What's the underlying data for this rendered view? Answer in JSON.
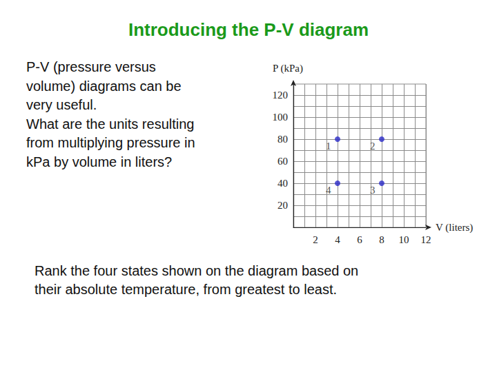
{
  "slide": {
    "title": "Introducing the P-V diagram",
    "intro_lines": [
      "P-V (pressure versus",
      "volume) diagrams can be",
      "very useful.",
      "What are the units resulting",
      "from multiplying pressure in",
      "kPa by volume in liters?"
    ],
    "question_lines": [
      "Rank the four states shown on the diagram based on",
      "their absolute temperature, from greatest to least."
    ]
  },
  "chart_data": {
    "type": "scatter",
    "x_label": "V (liters)",
    "y_label": "P (kPa)",
    "x": [
      4,
      8,
      8,
      4
    ],
    "values": [
      80,
      80,
      40,
      40
    ],
    "labels": [
      "1",
      "2",
      "3",
      "4"
    ],
    "color": "#2b2bc8",
    "xlim": [
      0,
      12
    ],
    "xticks": [
      2,
      4,
      6,
      8,
      10,
      12
    ],
    "ylim": [
      0,
      130
    ],
    "yticks": [
      20,
      40,
      60,
      80,
      100,
      120
    ],
    "grid": true
  }
}
